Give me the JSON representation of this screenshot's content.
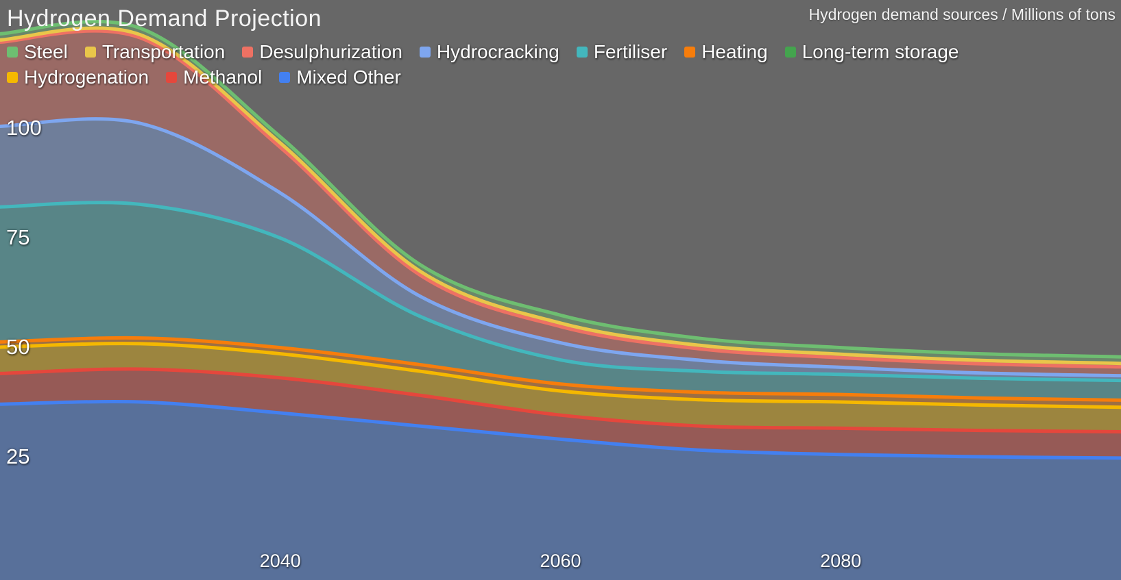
{
  "header": {
    "title": "Hydrogen Demand Projection",
    "subtitle": "Hydrogen demand sources / Millions of tons"
  },
  "colors": {
    "background": "#676767",
    "text": "#ffffff"
  },
  "chart_data": {
    "type": "area",
    "stacked": true,
    "title": "Hydrogen Demand Projection",
    "units_label": "Hydrogen demand sources / Millions of tons",
    "legend_position": "top",
    "grid": false,
    "x": [
      2020,
      2030,
      2040,
      2050,
      2060,
      2070,
      2080,
      2090,
      2100
    ],
    "xlim": [
      2020,
      2100
    ],
    "ylim": [
      0,
      129
    ],
    "xticks": [
      "2040",
      "2060",
      "2080"
    ],
    "xtick_values": [
      2040,
      2060,
      2080
    ],
    "yticks": [
      "100",
      "75",
      "50",
      "25"
    ],
    "ytick_values": [
      100,
      75,
      50,
      25
    ],
    "series": [
      {
        "name": "Steel",
        "color": "#6ebe71",
        "values": [
          1.4,
          1.5,
          1.4,
          1.5,
          1.8,
          1.6,
          1.5,
          1.5,
          1.5
        ]
      },
      {
        "name": "Transportation",
        "color": "#e9c64a",
        "values": [
          0.5,
          0.7,
          1.0,
          0.9,
          0.8,
          0.8,
          0.8,
          0.8,
          0.8
        ]
      },
      {
        "name": "Desulphurization",
        "color": "#ee7163",
        "values": [
          19.2,
          19.5,
          10.4,
          4.8,
          3.7,
          2.6,
          2.2,
          2.1,
          2.0
        ]
      },
      {
        "name": "Hydrocracking",
        "color": "#7ea6ef",
        "values": [
          18.4,
          18.5,
          10.3,
          4.6,
          3.9,
          2.5,
          1.6,
          1.2,
          1.1
        ]
      },
      {
        "name": "Fertiliser",
        "color": "#43b7bd",
        "values": [
          30.8,
          30.5,
          25.0,
          11.0,
          5.5,
          4.8,
          4.6,
          4.5,
          4.5
        ]
      },
      {
        "name": "Heating",
        "color": "#f77d0b",
        "values": [
          1.2,
          1.3,
          1.4,
          1.5,
          1.6,
          1.7,
          1.7,
          1.6,
          1.6
        ]
      },
      {
        "name": "Long-term storage",
        "color": "#44a44e",
        "values": [
          0,
          0,
          0,
          0,
          0,
          0,
          0,
          0,
          0
        ]
      },
      {
        "name": "Hydrogenation",
        "color": "#f5b800",
        "values": [
          6.0,
          5.8,
          5.5,
          5.5,
          5.5,
          6.0,
          6.0,
          5.8,
          5.6
        ]
      },
      {
        "name": "Methanol",
        "color": "#e5473c",
        "values": [
          7.0,
          7.5,
          8.0,
          7.0,
          5.5,
          5.5,
          6.0,
          6.0,
          6.0
        ]
      },
      {
        "name": "Mixed Other",
        "color": "#4380f0",
        "values": [
          37.0,
          37.5,
          35.0,
          32.0,
          29.0,
          26.5,
          25.5,
          25.0,
          24.7
        ]
      }
    ],
    "stack_order_note": "legend order is top-of-stack first; rendering stacks from last series (Mixed Other) at the bottom upward",
    "fill_opacity": 0.38,
    "line_width": 5
  }
}
